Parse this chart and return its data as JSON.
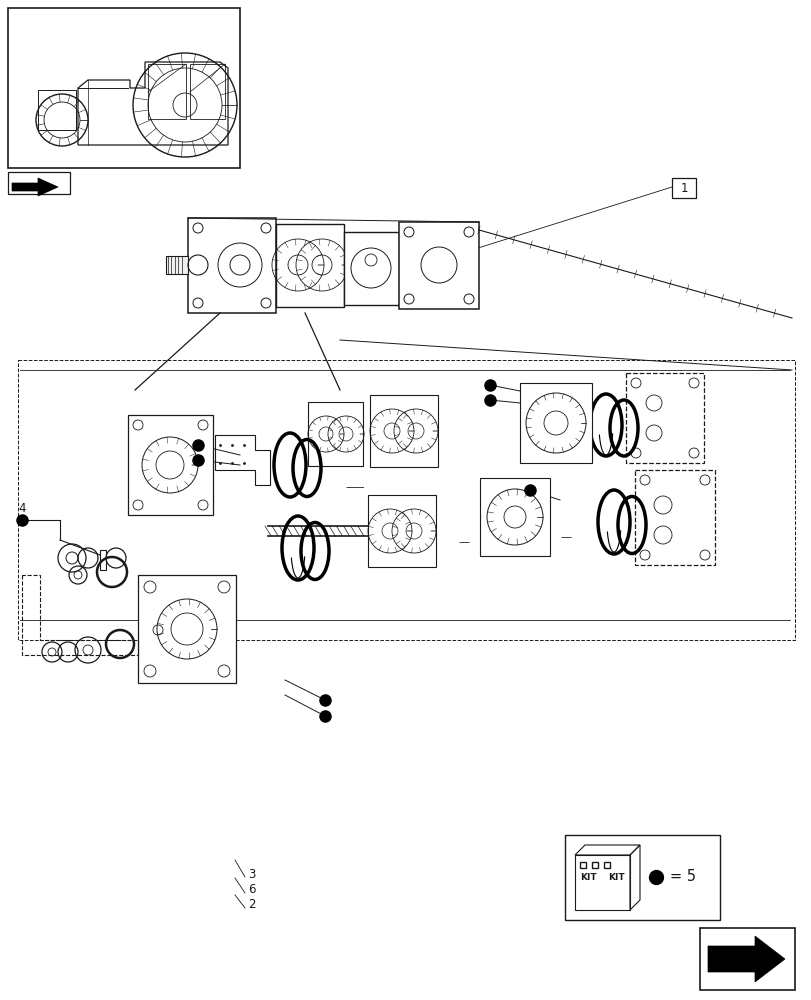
{
  "bg_color": "#ffffff",
  "line_color": "#1a1a1a",
  "fig_width": 8.12,
  "fig_height": 10.0,
  "label_1": "1",
  "label_2": "2",
  "label_3": "3",
  "label_4": "4",
  "label_5": "5",
  "label_6": "6",
  "kit_text": "= 5"
}
